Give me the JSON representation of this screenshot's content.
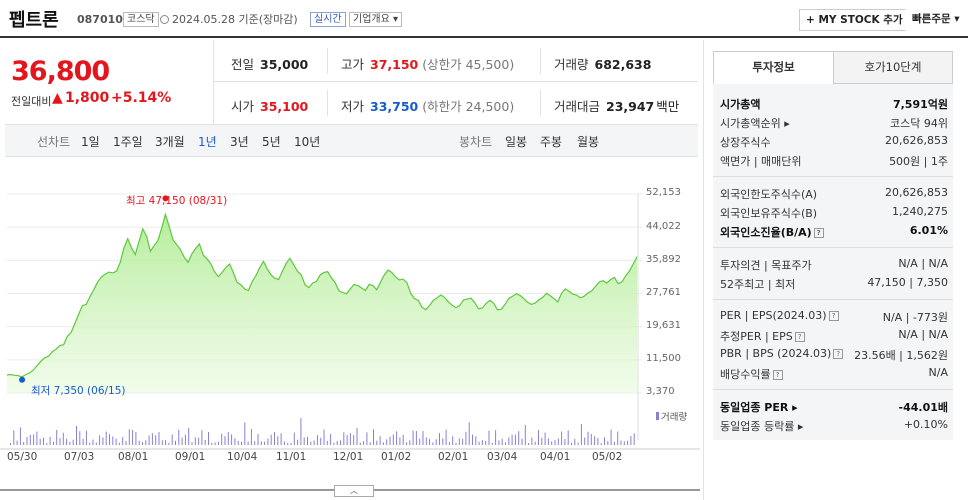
{
  "header": {
    "company": "펩트론",
    "code": "087010",
    "market_badge": "코스닥",
    "date": "2024.05.28 기준(장마감)",
    "realtime_badge": "실시간",
    "overview_label": "기업개요 ▾",
    "mystock_label": "+ MY STOCK 추가",
    "quick_order_label": "빠른주문 ▾"
  },
  "price": {
    "current": "36,800",
    "change_label": "전일대비",
    "change_arrow": "▲",
    "change_value": "1,800",
    "change_pct": "+5.14%"
  },
  "quote": {
    "prev_close": {
      "label": "전일",
      "value": "35,000"
    },
    "high": {
      "label": "고가",
      "value": "37,150",
      "note": "(상한가 45,500)"
    },
    "volume": {
      "label": "거래량",
      "value": "682,638"
    },
    "open": {
      "label": "시가",
      "value": "35,100"
    },
    "low": {
      "label": "저가",
      "value": "33,750",
      "note": "(하한가 24,500)"
    },
    "amount": {
      "label": "거래대금",
      "value": "23,947",
      "unit": "백만"
    }
  },
  "period_tabs": {
    "line_label": "선차트",
    "line_items": [
      "1일",
      "1주일",
      "3개월",
      "1년",
      "3년",
      "5년",
      "10년"
    ],
    "active": "1년",
    "candle_label": "봉차트",
    "candle_items": [
      "일봉",
      "주봉",
      "월봉"
    ]
  },
  "side_tabs": [
    "투자정보",
    "호가10단계"
  ],
  "invest": {
    "g1": [
      {
        "k": "시가총액",
        "v": "7,591억원",
        "bold": true
      },
      {
        "k": "시가총액순위 ▸",
        "v": "코스닥 94위"
      },
      {
        "k": "상장주식수",
        "v": "20,626,853"
      },
      {
        "k": "액면가 | 매매단위",
        "v": "500원 | 1주"
      }
    ],
    "g2": [
      {
        "k": "외국인한도주식수(A)",
        "v": "20,626,853"
      },
      {
        "k": "외국인보유주식수(B)",
        "v": "1,240,275"
      },
      {
        "k": "외국인소진율(B/A)",
        "v": "6.01%",
        "bold": true
      }
    ],
    "g3": [
      {
        "k": "투자의견 | 목표주가",
        "v": "N/A | N/A"
      },
      {
        "k": "52주최고 | 최저",
        "v": "47,150 | 7,350"
      }
    ],
    "g4": [
      {
        "k": "PER | EPS(2024.03)",
        "v": "N/A | -773원"
      },
      {
        "k": "추정PER | EPS",
        "v": "N/A | N/A"
      },
      {
        "k": "PBR | BPS (2024.03)",
        "v": "23.56배 | 1,562원"
      },
      {
        "k": "배당수익률",
        "v": "N/A"
      }
    ],
    "g5": [
      {
        "k": "동일업종 PER ▸",
        "v": "-44.01배",
        "bold": true
      },
      {
        "k": "동일업종 등락률 ▸",
        "v": "+0.10%",
        "red": true
      }
    ]
  },
  "chart_data": {
    "type": "area",
    "y_ticks": [
      "52,153",
      "44,022",
      "35,892",
      "27,761",
      "19,631",
      "11,500",
      "3,370"
    ],
    "ylim": [
      3370,
      52153
    ],
    "x_ticks": [
      "05/30",
      "07/03",
      "08/01",
      "09/01",
      "10/04",
      "11/01",
      "12/01",
      "01/02",
      "02/01",
      "03/04",
      "04/01",
      "05/02"
    ],
    "high_label": "최고 47,150 (08/31)",
    "low_label": "최저 7,350 (06/15)",
    "volume_label": "거래량",
    "prices": [
      7800,
      7900,
      7700,
      7600,
      7350,
      7900,
      8300,
      9000,
      10100,
      11200,
      12000,
      12400,
      13500,
      14100,
      15000,
      15200,
      17300,
      18200,
      20400,
      22700,
      24800,
      25100,
      27000,
      28700,
      30500,
      31800,
      32500,
      33000,
      32800,
      33200,
      35400,
      38900,
      41200,
      39000,
      37300,
      40500,
      43600,
      41800,
      38100,
      39500,
      40700,
      43800,
      47150,
      44200,
      40900,
      39700,
      38500,
      36600,
      35400,
      37500,
      38800,
      39900,
      37200,
      36300,
      35100,
      33100,
      31900,
      32900,
      34100,
      35000,
      32900,
      30500,
      29900,
      28900,
      28500,
      30700,
      32200,
      34100,
      35600,
      33800,
      32300,
      31500,
      31200,
      33200,
      35200,
      36400,
      34800,
      33200,
      32300,
      29900,
      29200,
      30300,
      30700,
      32300,
      32900,
      33100,
      31600,
      30400,
      28400,
      28000,
      27700,
      28900,
      30000,
      29700,
      29100,
      28500,
      30000,
      29700,
      28700,
      30500,
      32300,
      33500,
      32900,
      31800,
      31100,
      31300,
      30400,
      27800,
      26500,
      26100,
      24400,
      23800,
      24800,
      26100,
      26700,
      27400,
      26800,
      25700,
      24900,
      24300,
      24800,
      26200,
      26400,
      26600,
      25500,
      24000,
      24200,
      25300,
      26100,
      25400,
      23800,
      23900,
      25100,
      26500,
      27100,
      27700,
      27300,
      26500,
      25600,
      25100,
      25400,
      26200,
      26800,
      27800,
      27200,
      26500,
      25700,
      27800,
      28900,
      28300,
      27600,
      27400,
      26700,
      27100,
      27900,
      28400,
      29500,
      30600,
      30900,
      30300,
      31200,
      31700,
      30200,
      30600,
      32100,
      33300,
      35000,
      36800
    ]
  }
}
